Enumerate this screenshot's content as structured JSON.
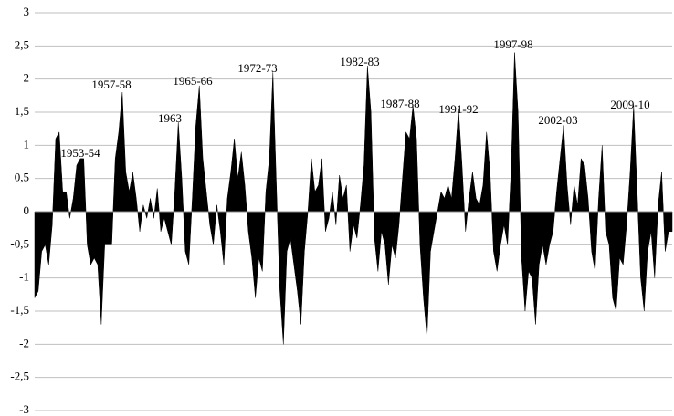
{
  "chart_data": {
    "type": "area",
    "values": [
      -1.3,
      -1.2,
      -0.6,
      -0.5,
      -0.8,
      -0.2,
      1.1,
      1.2,
      0.3,
      0.3,
      -0.1,
      0.2,
      0.7,
      0.8,
      0.8,
      -0.5,
      -0.8,
      -0.7,
      -0.8,
      -1.7,
      -0.5,
      -0.5,
      -0.5,
      0.8,
      1.2,
      1.8,
      0.6,
      0.3,
      0.6,
      0.2,
      -0.3,
      0.1,
      -0.1,
      0.2,
      -0.1,
      0.35,
      -0.3,
      -0.1,
      -0.3,
      -0.5,
      0.3,
      1.35,
      0.5,
      -0.6,
      -0.8,
      0.2,
      1.3,
      1.9,
      0.8,
      0.3,
      -0.2,
      -0.5,
      0.1,
      -0.3,
      -0.8,
      0.2,
      0.6,
      1.1,
      0.5,
      0.9,
      0.4,
      -0.3,
      -0.7,
      -1.3,
      -0.7,
      -0.9,
      0.3,
      0.8,
      2.1,
      0.4,
      -1.2,
      -2.0,
      -0.6,
      -0.4,
      -0.8,
      -1.2,
      -1.7,
      -0.6,
      0,
      0.8,
      0.3,
      0.4,
      0.8,
      -0.3,
      -0.1,
      0.3,
      -0.2,
      0.55,
      0.2,
      0.4,
      -0.6,
      -0.2,
      -0.4,
      0.1,
      0.7,
      2.2,
      1.5,
      -0.4,
      -0.9,
      -0.3,
      -0.5,
      -1.1,
      -0.5,
      -0.7,
      -0.2,
      0.5,
      1.2,
      1.1,
      1.6,
      1.1,
      -0.5,
      -1.3,
      -1.9,
      -0.6,
      -0.3,
      0,
      0.3,
      0.2,
      0.4,
      0.2,
      0.8,
      1.55,
      0.7,
      -0.3,
      0.2,
      0.6,
      0.2,
      0.1,
      0.4,
      1.2,
      0.6,
      -0.6,
      -0.9,
      -0.5,
      -0.2,
      -0.5,
      0.6,
      2.4,
      1.5,
      -0.7,
      -1.5,
      -0.9,
      -1.0,
      -1.7,
      -0.8,
      -0.5,
      -0.8,
      -0.5,
      -0.3,
      0.3,
      0.8,
      1.3,
      0.4,
      -0.2,
      0.4,
      0.1,
      0.8,
      0.7,
      0.2,
      -0.6,
      -0.9,
      0.2,
      1.0,
      -0.3,
      -0.5,
      -1.3,
      -1.5,
      -0.7,
      -0.8,
      -0.2,
      0.6,
      1.6,
      0.3,
      -1.0,
      -1.5,
      -0.6,
      -0.3,
      -1.0,
      0.1,
      0.6,
      -0.6,
      -0.3,
      -0.3
    ],
    "color": "#000000",
    "ylim": [
      -3,
      3
    ],
    "yticks": [
      -3,
      {
        "value": -2.5,
        "label": "-2,5"
      },
      -2,
      {
        "value": -1.5,
        "label": "-1,5"
      },
      -1,
      {
        "value": -0.5,
        "label": "-0,5"
      },
      0,
      {
        "value": 0.5,
        "label": "0,5"
      },
      1,
      {
        "value": 1.5,
        "label": "1,5"
      },
      2,
      {
        "value": 2.5,
        "label": "2,5"
      },
      3
    ],
    "grid": true,
    "annotations": [
      "1953-54",
      "1957-58",
      "1963",
      "1965-66",
      "1972-73",
      "1982-83",
      "1987-88",
      "1991-92",
      "1997-98",
      "2002-03",
      "2009-10"
    ]
  }
}
